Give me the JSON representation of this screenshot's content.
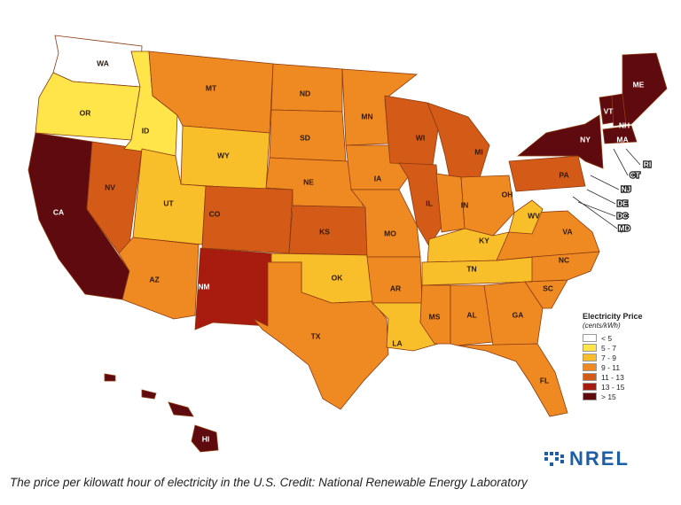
{
  "map": {
    "legend": {
      "title": "Electricity Price",
      "units": "(cents/kWh)",
      "bins": [
        {
          "label": "< 5",
          "color": "#ffffff"
        },
        {
          "label": "5 - 7",
          "color": "#ffe54a"
        },
        {
          "label": "7 - 9",
          "color": "#f8bf2a"
        },
        {
          "label": "9 - 11",
          "color": "#ef8a22"
        },
        {
          "label": "11 - 13",
          "color": "#d45a18"
        },
        {
          "label": "13 - 15",
          "color": "#a81c10"
        },
        {
          "label": "> 15",
          "color": "#5e0a0e"
        }
      ]
    },
    "states": [
      {
        "code": "WA",
        "bin": 0
      },
      {
        "code": "OR",
        "bin": 1
      },
      {
        "code": "CA",
        "bin": 6
      },
      {
        "code": "NV",
        "bin": 4
      },
      {
        "code": "ID",
        "bin": 1
      },
      {
        "code": "MT",
        "bin": 3
      },
      {
        "code": "WY",
        "bin": 2
      },
      {
        "code": "UT",
        "bin": 2
      },
      {
        "code": "AZ",
        "bin": 3
      },
      {
        "code": "CO",
        "bin": 4
      },
      {
        "code": "NM",
        "bin": 5
      },
      {
        "code": "ND",
        "bin": 3
      },
      {
        "code": "SD",
        "bin": 3
      },
      {
        "code": "NE",
        "bin": 3
      },
      {
        "code": "KS",
        "bin": 4
      },
      {
        "code": "OK",
        "bin": 2
      },
      {
        "code": "TX",
        "bin": 3
      },
      {
        "code": "MN",
        "bin": 3
      },
      {
        "code": "IA",
        "bin": 3
      },
      {
        "code": "MO",
        "bin": 3
      },
      {
        "code": "AR",
        "bin": 3
      },
      {
        "code": "LA",
        "bin": 2
      },
      {
        "code": "WI",
        "bin": 4
      },
      {
        "code": "IL",
        "bin": 4
      },
      {
        "code": "MI",
        "bin": 4
      },
      {
        "code": "IN",
        "bin": 3
      },
      {
        "code": "OH",
        "bin": 3
      },
      {
        "code": "KY",
        "bin": 2
      },
      {
        "code": "TN",
        "bin": 2
      },
      {
        "code": "MS",
        "bin": 3
      },
      {
        "code": "AL",
        "bin": 3
      },
      {
        "code": "GA",
        "bin": 3
      },
      {
        "code": "FL",
        "bin": 3
      },
      {
        "code": "SC",
        "bin": 3
      },
      {
        "code": "NC",
        "bin": 3
      },
      {
        "code": "VA",
        "bin": 3
      },
      {
        "code": "WV",
        "bin": 2
      },
      {
        "code": "PA",
        "bin": 4
      },
      {
        "code": "NY",
        "bin": 6
      },
      {
        "code": "VT",
        "bin": 6
      },
      {
        "code": "NH",
        "bin": 6
      },
      {
        "code": "ME",
        "bin": 6
      },
      {
        "code": "MA",
        "bin": 6
      },
      {
        "code": "HI",
        "bin": 6
      }
    ],
    "callouts": [
      "RI",
      "CT",
      "NJ",
      "DE",
      "DC",
      "MD"
    ]
  },
  "logo_text": "NREL",
  "caption": "The price per kilowatt hour of electricity in the U.S.   Credit: National Renewable Energy Laboratory"
}
